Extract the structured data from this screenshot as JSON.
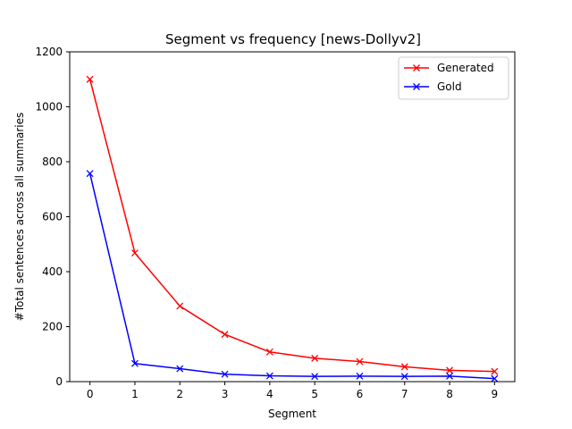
{
  "chart_data": {
    "type": "line",
    "title": "Segment vs frequency [news-Dollyv2]",
    "xlabel": "Segment",
    "ylabel": "#Total sentences across all summaries",
    "x": [
      0,
      1,
      2,
      3,
      4,
      5,
      6,
      7,
      8,
      9
    ],
    "xlim": [
      -0.45,
      9.45
    ],
    "ylim": [
      0,
      1200
    ],
    "xticks": [
      "0",
      "1",
      "2",
      "3",
      "4",
      "5",
      "6",
      "7",
      "8",
      "9"
    ],
    "yticks": [
      "0",
      "200",
      "400",
      "600",
      "800",
      "1000",
      "1200"
    ],
    "grid": false,
    "legend_position": "top-right",
    "marker": "x",
    "series": [
      {
        "name": "Generated",
        "color": "#ff0000",
        "values": [
          1100,
          468,
          275,
          172,
          108,
          85,
          73,
          54,
          41,
          37
        ]
      },
      {
        "name": "Gold",
        "color": "#0000ff",
        "values": [
          757,
          66,
          47,
          27,
          21,
          19,
          20,
          19,
          20,
          11
        ]
      }
    ]
  }
}
